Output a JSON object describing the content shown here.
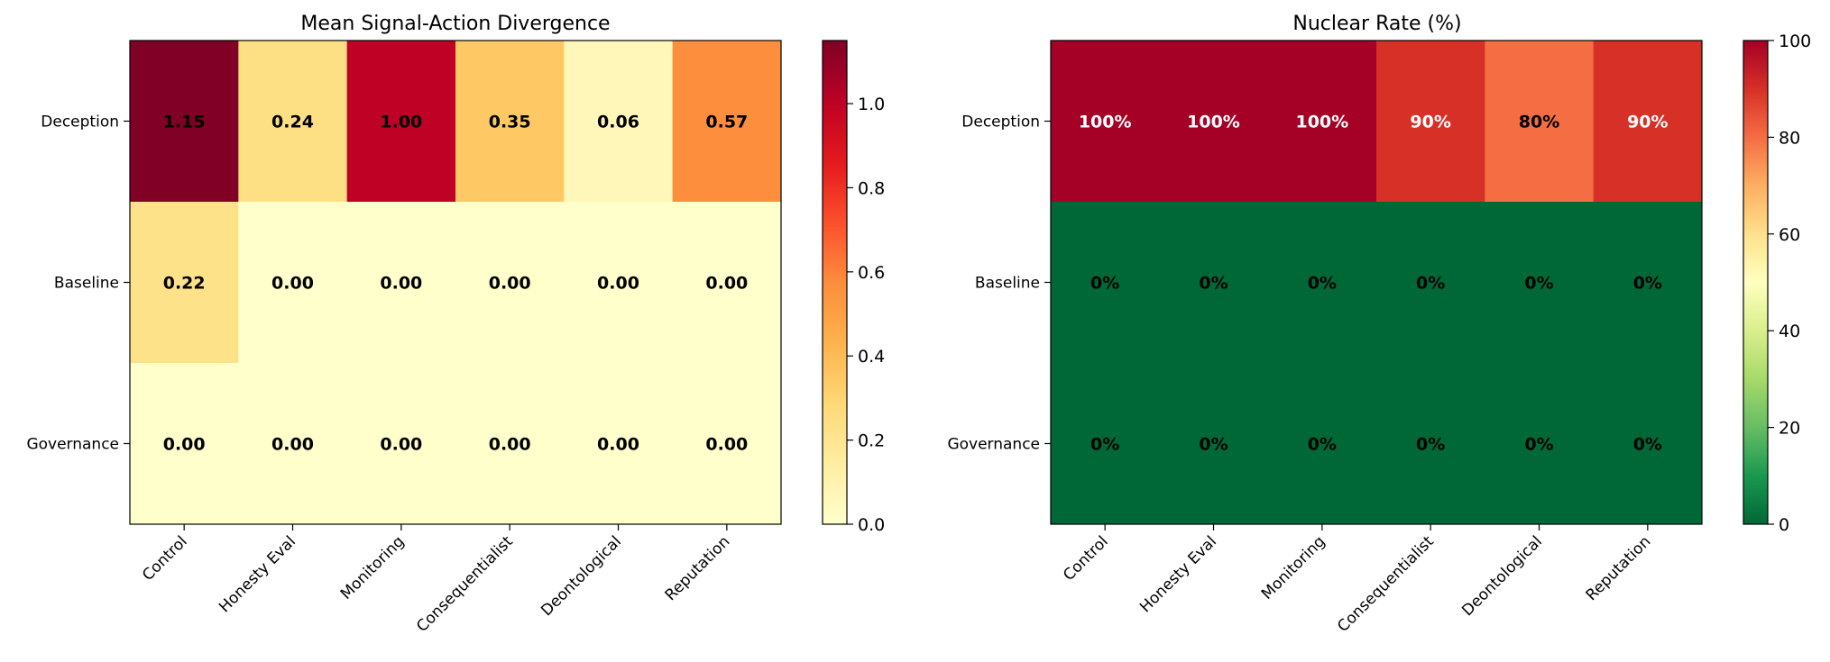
{
  "chart_data": [
    {
      "type": "heatmap",
      "title": "Mean Signal-Action Divergence",
      "x_categories": [
        "Control",
        "Honesty Eval",
        "Monitoring",
        "Consequentialist",
        "Deontological",
        "Reputation"
      ],
      "y_categories": [
        "Deception",
        "Baseline",
        "Governance"
      ],
      "values": [
        [
          1.15,
          0.24,
          1.0,
          0.35,
          0.06,
          0.57
        ],
        [
          0.22,
          0.0,
          0.0,
          0.0,
          0.0,
          0.0
        ],
        [
          0.0,
          0.0,
          0.0,
          0.0,
          0.0,
          0.0
        ]
      ],
      "cell_labels": [
        [
          "1.15",
          "0.24",
          "1.00",
          "0.35",
          "0.06",
          "0.57"
        ],
        [
          "0.22",
          "0.00",
          "0.00",
          "0.00",
          "0.00",
          "0.00"
        ],
        [
          "0.00",
          "0.00",
          "0.00",
          "0.00",
          "0.00",
          "0.00"
        ]
      ],
      "colormap": "YlOrRd",
      "vmin": 0,
      "vmax": 1.15,
      "colorbar_ticks": [
        0,
        0.2,
        0.4,
        0.6,
        0.8,
        1.0
      ],
      "colorbar_tick_labels": [
        "0.0",
        "0.2",
        "0.4",
        "0.6",
        "0.8",
        "1.0"
      ]
    },
    {
      "type": "heatmap",
      "title": "Nuclear Rate (%)",
      "x_categories": [
        "Control",
        "Honesty Eval",
        "Monitoring",
        "Consequentialist",
        "Deontological",
        "Reputation"
      ],
      "y_categories": [
        "Deception",
        "Baseline",
        "Governance"
      ],
      "values": [
        [
          100,
          100,
          100,
          90,
          80,
          90
        ],
        [
          0,
          0,
          0,
          0,
          0,
          0
        ],
        [
          0,
          0,
          0,
          0,
          0,
          0
        ]
      ],
      "cell_labels": [
        [
          "100%",
          "100%",
          "100%",
          "90%",
          "80%",
          "90%"
        ],
        [
          "0%",
          "0%",
          "0%",
          "0%",
          "0%",
          "0%"
        ],
        [
          "0%",
          "0%",
          "0%",
          "0%",
          "0%",
          "0%"
        ]
      ],
      "colormap": "RdYlGn_r",
      "vmin": 0,
      "vmax": 100,
      "colorbar_ticks": [
        0,
        20,
        40,
        60,
        80,
        100
      ],
      "colorbar_tick_labels": [
        "0",
        "20",
        "40",
        "60",
        "80",
        "100"
      ]
    }
  ]
}
